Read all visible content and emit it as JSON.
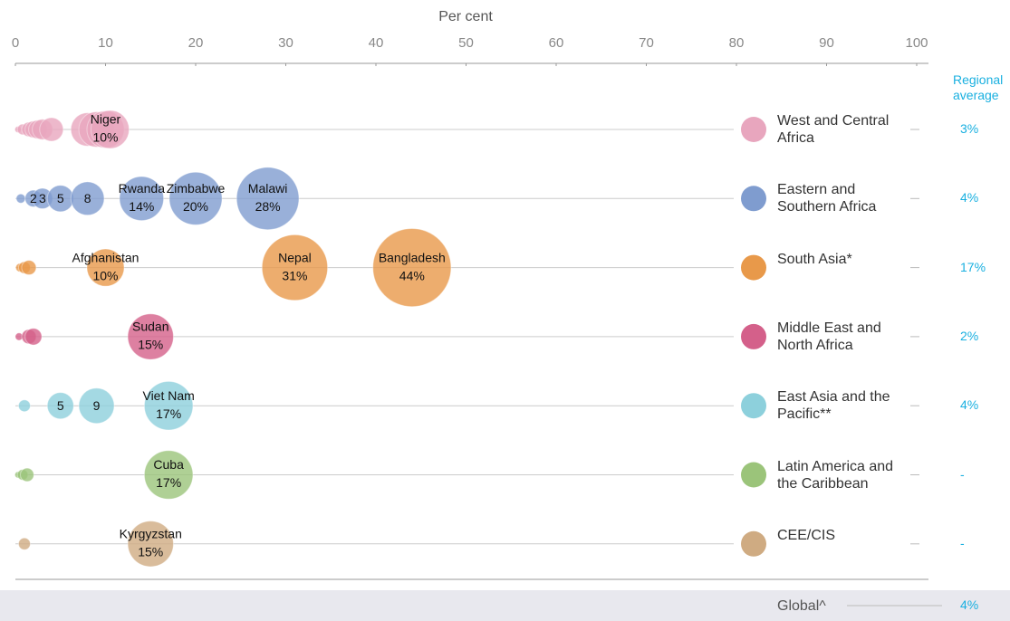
{
  "chart_data": {
    "type": "bubble",
    "xlabel": "Per cent",
    "xlim": [
      0,
      100
    ],
    "xticks": [
      0,
      10,
      20,
      30,
      40,
      50,
      60,
      70,
      80,
      90,
      100
    ],
    "average_title": "Regional average",
    "series": [
      {
        "name": "West and Central Africa",
        "color": "#e8a6be",
        "values": [
          0.3,
          0.8,
          1.5,
          2,
          2.5,
          3,
          4,
          8,
          9,
          10,
          10.5
        ],
        "labels": [
          null,
          null,
          null,
          null,
          null,
          null,
          null,
          null,
          null,
          "Niger",
          null
        ],
        "value_labels": [
          null,
          null,
          null,
          null,
          null,
          null,
          null,
          null,
          null,
          "10%",
          null
        ],
        "average": 3,
        "average_label": "3%"
      },
      {
        "name": "Eastern and Southern Africa",
        "color": "#7f9ccf",
        "values": [
          0.6,
          2,
          3,
          5,
          8,
          14,
          20,
          28
        ],
        "labels": [
          null,
          null,
          null,
          null,
          null,
          "Rwanda",
          "Zimbabwe",
          "Malawi"
        ],
        "value_labels": [
          null,
          "2",
          "3",
          "5",
          "8",
          "14%",
          "20%",
          "28%"
        ],
        "average": 4,
        "average_label": "4%"
      },
      {
        "name": "South Asia*",
        "color": "#e8994a",
        "values": [
          0.5,
          1,
          1.5,
          10,
          31,
          44
        ],
        "labels": [
          null,
          null,
          null,
          "Afghanistan",
          "Nepal",
          "Bangladesh"
        ],
        "value_labels": [
          null,
          null,
          null,
          "10%",
          "31%",
          "44%"
        ],
        "average": 17,
        "average_label": "17%"
      },
      {
        "name": "Middle East and North Africa",
        "color": "#d4608a",
        "values": [
          0.4,
          1.5,
          2,
          15
        ],
        "labels": [
          null,
          null,
          null,
          "Sudan"
        ],
        "value_labels": [
          null,
          null,
          null,
          "15%"
        ],
        "average": 2,
        "average_label": "2%"
      },
      {
        "name": "East Asia and the Pacific**",
        "color": "#8dd0dc",
        "values": [
          1,
          5,
          9,
          17
        ],
        "labels": [
          null,
          null,
          null,
          "Viet Nam"
        ],
        "value_labels": [
          null,
          "5",
          "9",
          "17%"
        ],
        "average": 4,
        "average_label": "4%"
      },
      {
        "name": "Latin America and the Caribbean",
        "color": "#9bc47a",
        "values": [
          0.3,
          0.8,
          1.3,
          17
        ],
        "labels": [
          null,
          null,
          null,
          "Cuba"
        ],
        "value_labels": [
          null,
          null,
          null,
          "17%"
        ],
        "average": null,
        "average_label": "-"
      },
      {
        "name": "CEE/CIS",
        "color": "#cfab82",
        "values": [
          1,
          15
        ],
        "labels": [
          null,
          "Kyrgyzstan"
        ],
        "value_labels": [
          null,
          "15%"
        ],
        "average": null,
        "average_label": "-"
      }
    ],
    "global": {
      "label": "Global^",
      "value": 4,
      "value_label": "4%"
    }
  }
}
